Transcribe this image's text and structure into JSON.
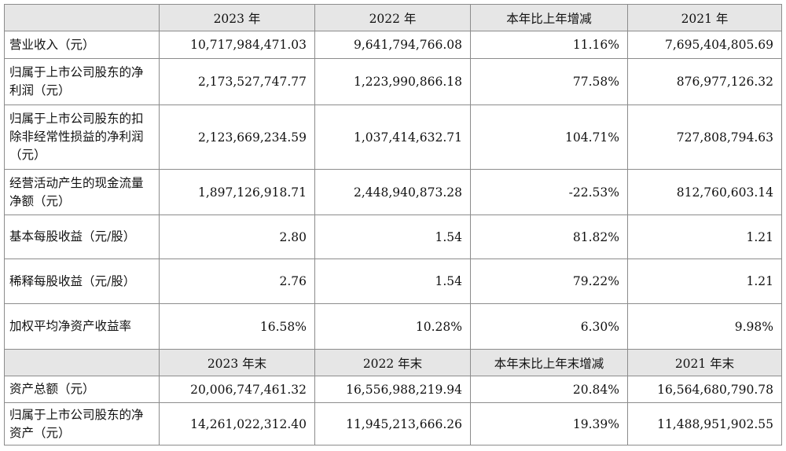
{
  "header1": [
    "2023 年",
    "2022 年",
    "本年比上年增减",
    "2021 年"
  ],
  "rows1": [
    {
      "label": "营业收入（元）",
      "values": [
        "10,717,984,471.03",
        "9,641,794,766.08",
        "11.16%",
        "7,695,404,805.69"
      ]
    },
    {
      "label": "归属于上市公司股东的净利润（元）",
      "values": [
        "2,173,527,747.77",
        "1,223,990,866.18",
        "77.58%",
        "876,977,126.32"
      ]
    },
    {
      "label": "归属于上市公司股东的扣除非经常性损益的净利润（元）",
      "values": [
        "2,123,669,234.59",
        "1,037,414,632.71",
        "104.71%",
        "727,808,794.63"
      ]
    },
    {
      "label": "经营活动产生的现金流量净额（元）",
      "values": [
        "1,897,126,918.71",
        "2,448,940,873.28",
        "-22.53%",
        "812,760,603.14"
      ]
    },
    {
      "label": "基本每股收益（元/股）",
      "values": [
        "2.80",
        "1.54",
        "81.82%",
        "1.21"
      ]
    },
    {
      "label": "稀释每股收益（元/股）",
      "values": [
        "2.76",
        "1.54",
        "79.22%",
        "1.21"
      ]
    },
    {
      "label": "加权平均净资产收益率",
      "values": [
        "16.58%",
        "10.28%",
        "6.30%",
        "9.98%"
      ]
    }
  ],
  "header2": [
    "2023 年末",
    "2022 年末",
    "本年末比上年末增减",
    "2021 年末"
  ],
  "rows2": [
    {
      "label": "资产总额（元）",
      "values": [
        "20,006,747,461.32",
        "16,556,988,219.94",
        "20.84%",
        "16,564,680,790.78"
      ]
    },
    {
      "label": "归属于上市公司股东的净资产（元）",
      "values": [
        "14,261,022,312.40",
        "11,945,213,666.26",
        "19.39%",
        "11,488,951,902.55"
      ]
    }
  ]
}
